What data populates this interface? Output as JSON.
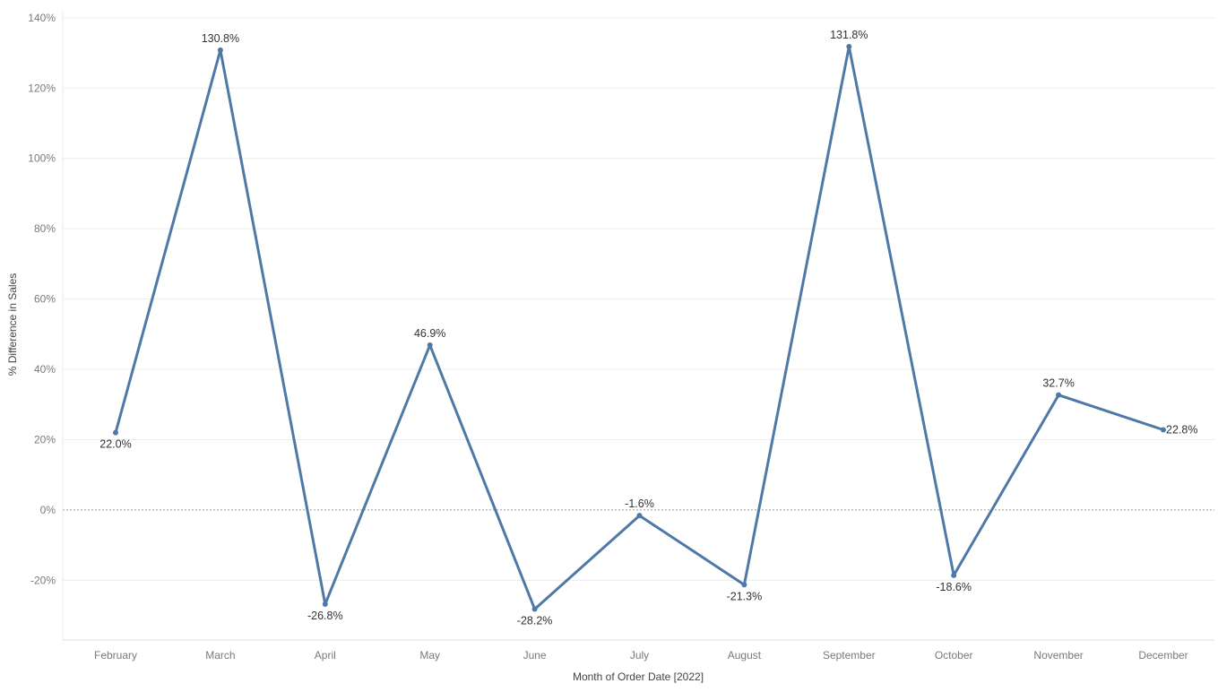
{
  "chart_data": {
    "type": "line",
    "title": "",
    "xlabel": "Month of Order Date [2022]",
    "ylabel": "% Difference in Sales",
    "categories": [
      "February",
      "March",
      "April",
      "May",
      "June",
      "July",
      "August",
      "September",
      "October",
      "November",
      "December"
    ],
    "series": [
      {
        "values": [
          22.0,
          130.8,
          -26.8,
          46.9,
          -28.2,
          -1.6,
          -21.3,
          131.8,
          -18.6,
          32.7,
          22.8
        ]
      }
    ],
    "value_labels": [
      "22.0%",
      "130.8%",
      "-26.8%",
      "46.9%",
      "-28.2%",
      "-1.6%",
      "-21.3%",
      "131.8%",
      "-18.6%",
      "32.7%",
      "22.8%"
    ],
    "label_positions": [
      "below",
      "above",
      "below",
      "above",
      "below",
      "above",
      "below",
      "above",
      "below",
      "above",
      "right"
    ],
    "yticks": [
      -20,
      0,
      20,
      40,
      60,
      80,
      100,
      120,
      140
    ],
    "ytick_labels": [
      "-20%",
      "0%",
      "20%",
      "40%",
      "60%",
      "80%",
      "100%",
      "120%",
      "140%"
    ],
    "ylim": [
      -37,
      142
    ],
    "grid": true,
    "zero_line": true,
    "colors": {
      "line": "#4e79a7",
      "grid": "#ececec",
      "zero": "#9a9a9a"
    }
  }
}
